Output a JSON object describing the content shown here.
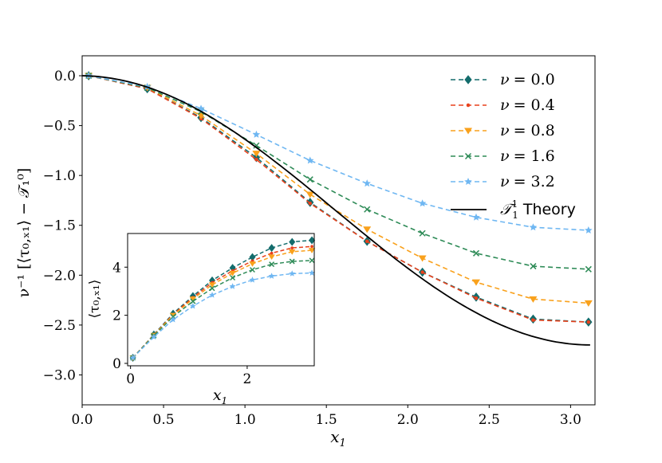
{
  "chart_data": [
    {
      "id": "main",
      "type": "line",
      "xlabel": "x",
      "xlabel_sub": "1",
      "ylabel": "ν⁻¹ [⟨τ₀,ₓ₁⟩ − 𝒯₁⁰]",
      "xlim": [
        0.0,
        3.15
      ],
      "ylim": [
        -3.3,
        0.2
      ],
      "xticks": [
        0.0,
        0.5,
        1.0,
        1.5,
        2.0,
        2.5,
        3.0
      ],
      "xtick_labels": [
        "0.0",
        "0.5",
        "1.0",
        "1.5",
        "2.0",
        "2.5",
        "3.0"
      ],
      "yticks": [
        0.0,
        -0.5,
        -1.0,
        -1.5,
        -2.0,
        -2.5,
        -3.0
      ],
      "ytick_labels": [
        "0.0",
        "−0.5",
        "−1.0",
        "−1.5",
        "−2.0",
        "−2.5",
        "−3.0"
      ],
      "grid": false,
      "legend_position": "top-right",
      "x": [
        0.04,
        0.4,
        0.73,
        1.07,
        1.4,
        1.75,
        2.09,
        2.42,
        2.77,
        3.11
      ],
      "series": [
        {
          "name": "ν = 0.0",
          "label_lhs": "ν",
          "label_rhs": "= 0.0",
          "color": "#136c6c",
          "marker": "diamond",
          "dashed": true,
          "values": [
            0.0,
            -0.13,
            -0.42,
            -0.82,
            -1.27,
            -1.66,
            -1.97,
            -2.22,
            -2.44,
            -2.47
          ]
        },
        {
          "name": "ν = 0.4",
          "label_lhs": "ν",
          "label_rhs": "= 0.4",
          "color": "#e8411c",
          "marker": "dot",
          "dashed": true,
          "values": [
            0.0,
            -0.13,
            -0.43,
            -0.84,
            -1.28,
            -1.66,
            -1.97,
            -2.23,
            -2.45,
            -2.47
          ]
        },
        {
          "name": "ν = 0.8",
          "label_lhs": "ν",
          "label_rhs": "= 0.8",
          "color": "#f9a11c",
          "marker": "triangle-down",
          "dashed": true,
          "values": [
            0.0,
            -0.12,
            -0.4,
            -0.78,
            -1.19,
            -1.54,
            -1.83,
            -2.07,
            -2.24,
            -2.28
          ]
        },
        {
          "name": "ν = 1.6",
          "label_lhs": "ν",
          "label_rhs": "= 1.6",
          "color": "#2e8b57",
          "marker": "x",
          "dashed": true,
          "values": [
            0.0,
            -0.12,
            -0.36,
            -0.7,
            -1.04,
            -1.34,
            -1.58,
            -1.78,
            -1.91,
            -1.94
          ]
        },
        {
          "name": "ν = 3.2",
          "label_lhs": "ν",
          "label_rhs": "= 3.2",
          "color": "#6fb7f2",
          "marker": "star",
          "dashed": true,
          "values": [
            0.0,
            -0.11,
            -0.33,
            -0.59,
            -0.85,
            -1.08,
            -1.28,
            -1.42,
            -1.52,
            -1.55
          ]
        },
        {
          "name": "𝒯₁¹ Theory",
          "label_lhs": "𝒯",
          "label_rhs": "Theory",
          "color": "#000000",
          "marker": "none",
          "dashed": false,
          "curve": "theory",
          "asymptote": -2.7
        }
      ]
    },
    {
      "id": "inset",
      "type": "line",
      "xlabel": "x",
      "xlabel_sub": "1",
      "ylabel": "⟨τ₀,ₓ₁⟩",
      "xlim": [
        -0.05,
        3.15
      ],
      "ylim": [
        -0.1,
        5.4
      ],
      "xticks": [
        0,
        2
      ],
      "xtick_labels": [
        "0",
        "2"
      ],
      "yticks": [
        0,
        2,
        4
      ],
      "ytick_labels": [
        "0",
        "2",
        "4"
      ],
      "x": [
        0.04,
        0.4,
        0.73,
        1.07,
        1.4,
        1.75,
        2.09,
        2.42,
        2.77,
        3.11
      ],
      "series": [
        {
          "name": "ν = 0.0",
          "color": "#136c6c",
          "marker": "diamond",
          "values": [
            0.23,
            1.2,
            2.07,
            2.8,
            3.45,
            3.97,
            4.42,
            4.8,
            5.05,
            5.12
          ]
        },
        {
          "name": "ν = 0.4",
          "color": "#e8411c",
          "marker": "dot",
          "values": [
            0.23,
            1.18,
            2.03,
            2.74,
            3.36,
            3.85,
            4.26,
            4.58,
            4.8,
            4.86
          ]
        },
        {
          "name": "ν = 0.8",
          "color": "#f9a11c",
          "marker": "triangle-down",
          "values": [
            0.23,
            1.17,
            2.0,
            2.68,
            3.27,
            3.75,
            4.14,
            4.43,
            4.64,
            4.7
          ]
        },
        {
          "name": "ν = 1.6",
          "color": "#2e8b57",
          "marker": "x",
          "values": [
            0.23,
            1.15,
            1.94,
            2.58,
            3.12,
            3.56,
            3.89,
            4.12,
            4.24,
            4.28
          ]
        },
        {
          "name": "ν = 3.2",
          "color": "#6fb7f2",
          "marker": "star",
          "values": [
            0.23,
            1.1,
            1.82,
            2.38,
            2.84,
            3.2,
            3.47,
            3.63,
            3.73,
            3.76
          ]
        }
      ]
    }
  ]
}
